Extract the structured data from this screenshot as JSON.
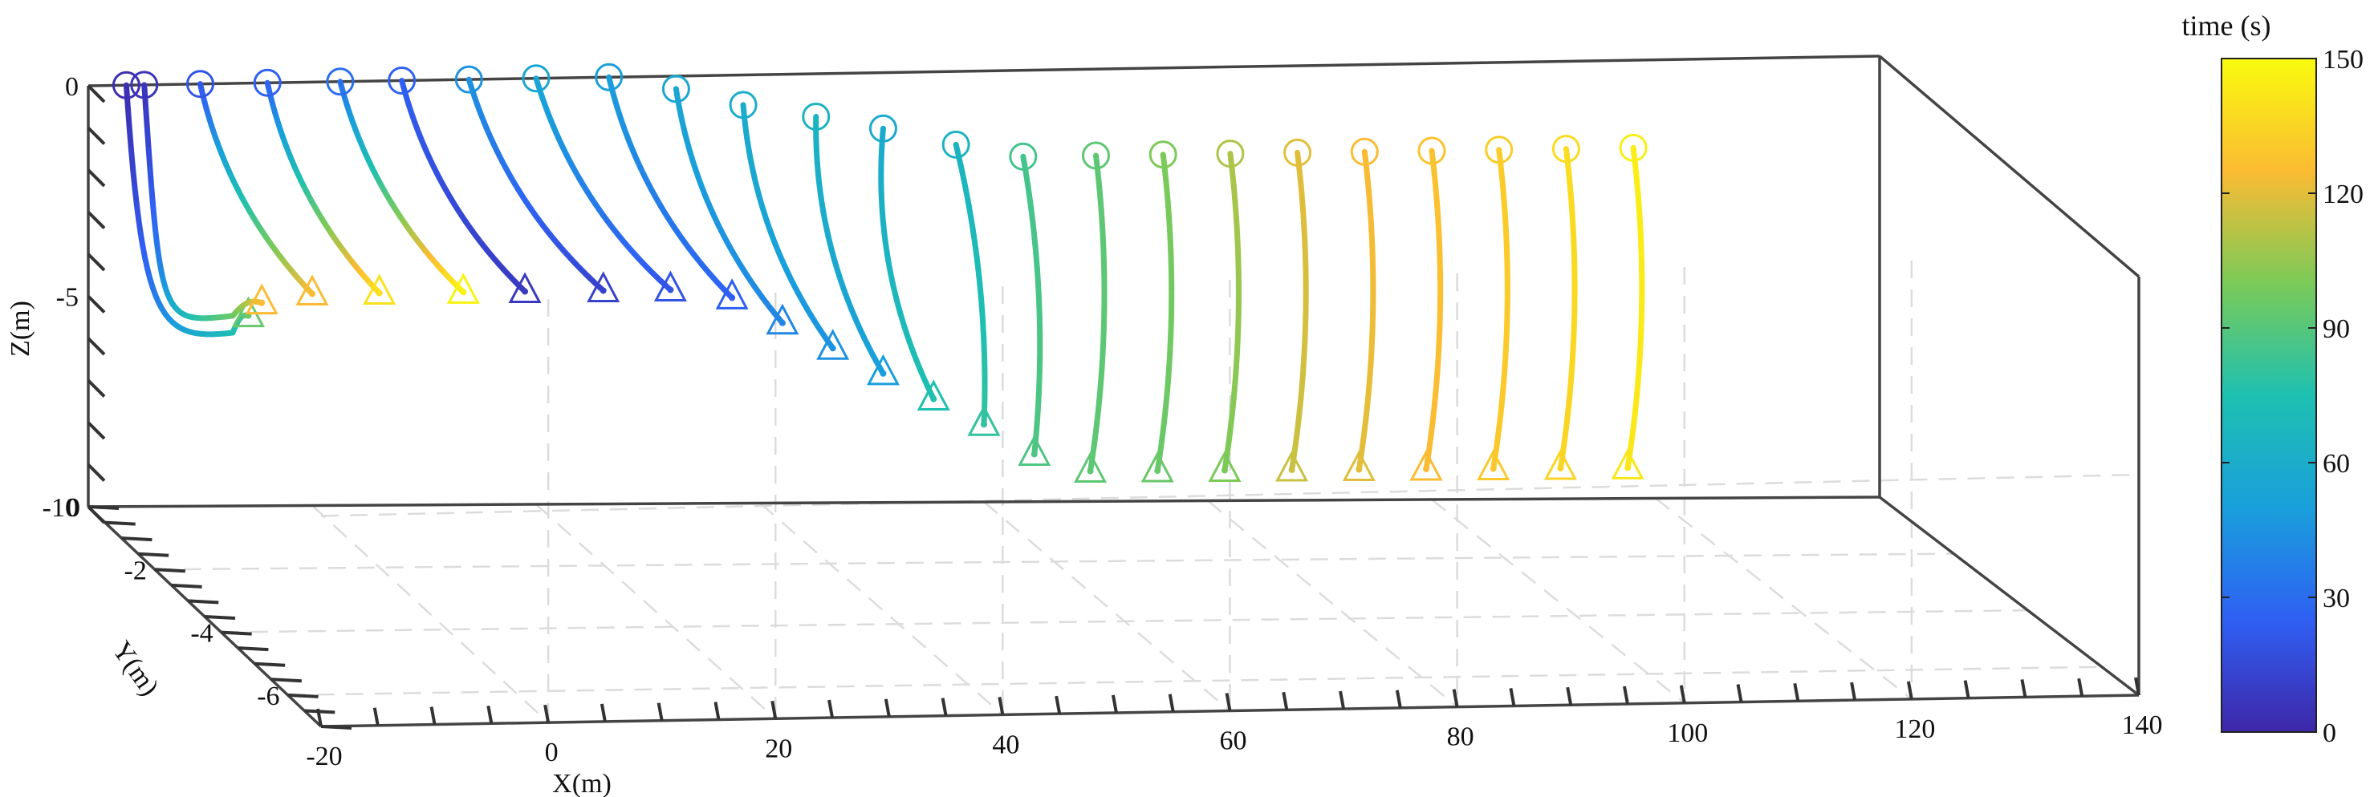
{
  "chart_data": {
    "type": "line",
    "title": "",
    "xlabel": "X(m)",
    "ylabel": "Y(m)",
    "zlabel": "Z(m)",
    "xlim": [
      -20,
      140
    ],
    "ylim": [
      -7,
      0
    ],
    "zlim": [
      -10,
      0
    ],
    "x_ticks": [
      "-20",
      "0",
      "20",
      "40",
      "60",
      "80",
      "100",
      "120",
      "140"
    ],
    "y_ticks": [
      "0",
      "-2",
      "-4",
      "-6"
    ],
    "z_ticks": [
      "0",
      "-5",
      "-10"
    ],
    "grid": true,
    "colorbar": {
      "title": "time (s)",
      "min": 0,
      "max": 150,
      "ticks": [
        "0",
        "30",
        "60",
        "90",
        "120",
        "150"
      ],
      "colormap": [
        "#3e26a8",
        "#2f60f3",
        "#199fdb",
        "#1ec0b0",
        "#7bca58",
        "#fbbb33",
        "#f9fb0e"
      ]
    },
    "start_marker": "circle",
    "end_marker": "triangle",
    "series": [
      {
        "start_x": -16.6,
        "start_z": 0.0,
        "end_x": -5.7,
        "end_z": -5.5,
        "dip_x": -7.1,
        "dip_z": -5.9,
        "time_start": 3,
        "time_end": 95
      },
      {
        "start_x": -15.0,
        "start_z": 0.0,
        "end_x": -4.5,
        "end_z": -5.2,
        "dip_x": -7.1,
        "dip_z": -5.5,
        "time_start": 6,
        "time_end": 125
      },
      {
        "start_x": -10.0,
        "start_z": 0.0,
        "end_x": 0.0,
        "end_z": -5.0,
        "time_start": 20,
        "time_end": 125
      },
      {
        "start_x": -4.0,
        "start_z": 0.0,
        "end_x": 6.0,
        "end_z": -5.0,
        "time_start": 25,
        "time_end": 140
      },
      {
        "start_x": 2.5,
        "start_z": 0.0,
        "end_x": 13.5,
        "end_z": -5.0,
        "time_start": 30,
        "time_end": 147
      },
      {
        "start_x": 8.0,
        "start_z": 0.0,
        "end_x": 19.0,
        "end_z": -5.0,
        "time_start": 25,
        "time_end": 8
      },
      {
        "start_x": 14.0,
        "start_z": 0.0,
        "end_x": 26.0,
        "end_z": -5.0,
        "time_start": 45,
        "time_end": 12
      },
      {
        "start_x": 20.0,
        "start_z": 0.0,
        "end_x": 32.0,
        "end_z": -5.0,
        "time_start": 55,
        "time_end": 20
      },
      {
        "start_x": 26.5,
        "start_z": 0.0,
        "end_x": 37.5,
        "end_z": -5.2,
        "time_start": 50,
        "time_end": 25
      },
      {
        "start_x": 32.5,
        "start_z": -0.3,
        "end_x": 42.0,
        "end_z": -5.8,
        "time_start": 55,
        "time_end": 40
      },
      {
        "start_x": 38.5,
        "start_z": -0.7,
        "end_x": 46.5,
        "end_z": -6.4,
        "time_start": 60,
        "time_end": 45
      },
      {
        "start_x": 45.0,
        "start_z": -1.0,
        "end_x": 51.0,
        "end_z": -7.0,
        "time_start": 65,
        "time_end": 50
      },
      {
        "start_x": 51.0,
        "start_z": -1.3,
        "end_x": 55.5,
        "end_z": -7.6,
        "time_start": 58,
        "time_end": 75
      },
      {
        "start_x": 57.5,
        "start_z": -1.7,
        "end_x": 60.0,
        "end_z": -8.2,
        "time_start": 65,
        "time_end": 80
      },
      {
        "start_x": 63.5,
        "start_z": -2.0,
        "end_x": 64.5,
        "end_z": -8.9,
        "time_start": 85,
        "time_end": 88
      },
      {
        "start_x": 70.0,
        "start_z": -2.0,
        "end_x": 69.5,
        "end_z": -9.3,
        "time_start": 92,
        "time_end": 92
      },
      {
        "start_x": 76.0,
        "start_z": -2.0,
        "end_x": 75.5,
        "end_z": -9.3,
        "time_start": 100,
        "time_end": 95
      },
      {
        "start_x": 82.0,
        "start_z": -2.0,
        "end_x": 81.5,
        "end_z": -9.3,
        "time_start": 110,
        "time_end": 100
      },
      {
        "start_x": 88.0,
        "start_z": -2.0,
        "end_x": 87.5,
        "end_z": -9.3,
        "time_start": 120,
        "time_end": 115
      },
      {
        "start_x": 94.0,
        "start_z": -2.0,
        "end_x": 93.5,
        "end_z": -9.3,
        "time_start": 125,
        "time_end": 120
      },
      {
        "start_x": 100.0,
        "start_z": -2.0,
        "end_x": 99.5,
        "end_z": -9.3,
        "time_start": 128,
        "time_end": 125
      },
      {
        "start_x": 106.0,
        "start_z": -2.0,
        "end_x": 105.5,
        "end_z": -9.3,
        "time_start": 132,
        "time_end": 130
      },
      {
        "start_x": 112.0,
        "start_z": -2.0,
        "end_x": 111.5,
        "end_z": -9.3,
        "time_start": 138,
        "time_end": 135
      },
      {
        "start_x": 118.0,
        "start_z": -2.0,
        "end_x": 117.5,
        "end_z": -9.3,
        "time_start": 145,
        "time_end": 142
      }
    ]
  }
}
